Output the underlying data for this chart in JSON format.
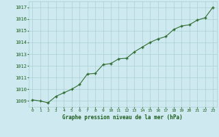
{
  "x": [
    0,
    1,
    2,
    3,
    4,
    5,
    6,
    7,
    8,
    9,
    10,
    11,
    12,
    13,
    14,
    15,
    16,
    17,
    18,
    19,
    20,
    21,
    22,
    23
  ],
  "y": [
    1009.1,
    1009.0,
    1008.85,
    1009.4,
    1009.7,
    1010.0,
    1010.4,
    1011.3,
    1011.35,
    1012.1,
    1012.2,
    1012.6,
    1012.65,
    1013.2,
    1013.6,
    1014.0,
    1014.3,
    1014.5,
    1015.1,
    1015.4,
    1015.5,
    1015.9,
    1016.1,
    1017.0
  ],
  "line_color": "#2d6a2d",
  "marker_color": "#2d6a2d",
  "bg_color": "#ceeaf0",
  "plot_bg_color": "#ceeaf0",
  "grid_color": "#aacfcf",
  "xlabel": "Graphe pression niveau de la mer (hPa)",
  "xlabel_color": "#1a5c1a",
  "tick_color": "#1a5c1a",
  "ylim": [
    1008.5,
    1017.5
  ],
  "yticks": [
    1009,
    1010,
    1011,
    1012,
    1013,
    1014,
    1015,
    1016,
    1017
  ],
  "xticks": [
    0,
    1,
    2,
    3,
    4,
    5,
    6,
    7,
    8,
    9,
    10,
    11,
    12,
    13,
    14,
    15,
    16,
    17,
    18,
    19,
    20,
    21,
    22,
    23
  ],
  "xlim": [
    -0.5,
    23.5
  ]
}
